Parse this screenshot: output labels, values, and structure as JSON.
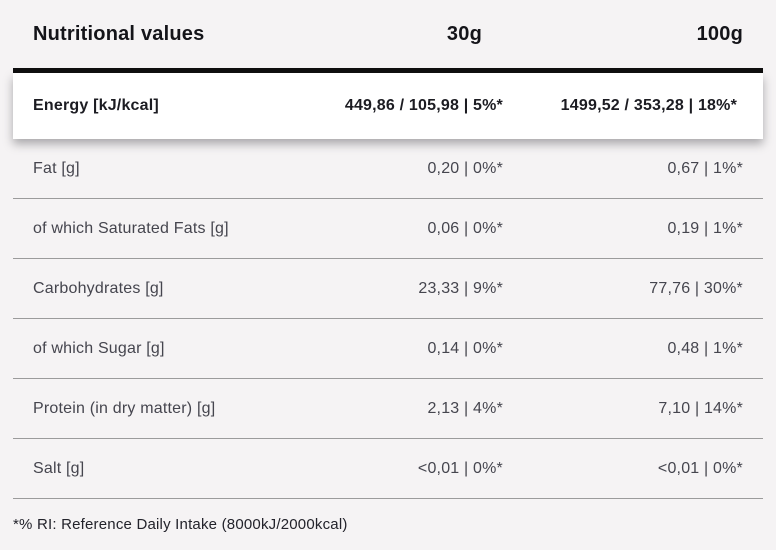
{
  "table": {
    "header": {
      "title": "Nutritional values",
      "col_30g": "30g",
      "col_100g": "100g"
    },
    "energy_row": {
      "label": "Energy [kJ/kcal]",
      "value_30g": "449,86 / 105,98 | 5%*",
      "value_100g": "1499,52 / 353,28 | 18%*"
    },
    "rows": [
      {
        "label": "Fat [g]",
        "value_30g": "0,20 | 0%*",
        "value_100g": "0,67 | 1%*"
      },
      {
        "label": "of which Saturated Fats [g]",
        "value_30g": "0,06 | 0%*",
        "value_100g": "0,19 | 1%*"
      },
      {
        "label": "Carbohydrates [g]",
        "value_30g": "23,33 | 9%*",
        "value_100g": "77,76 | 30%*"
      },
      {
        "label": "of which Sugar [g]",
        "value_30g": "0,14 | 0%*",
        "value_100g": "0,48 | 1%*"
      },
      {
        "label": "Protein (in dry matter) [g]",
        "value_30g": "2,13 | 4%*",
        "value_100g": "7,10 | 14%*"
      },
      {
        "label": "Salt [g]",
        "value_30g": "<0,01 | 0%*",
        "value_100g": "<0,01 | 0%*"
      }
    ],
    "footnote": "*% RI: Reference Daily Intake (8000kJ/2000kcal)"
  },
  "colors": {
    "page_background": "#f5f3f4",
    "card_background": "#ffffff",
    "separator_bar": "#0f0f0f",
    "divider_line": "#9b9b9b",
    "heading_text": "#141419",
    "body_text": "#45454e"
  }
}
